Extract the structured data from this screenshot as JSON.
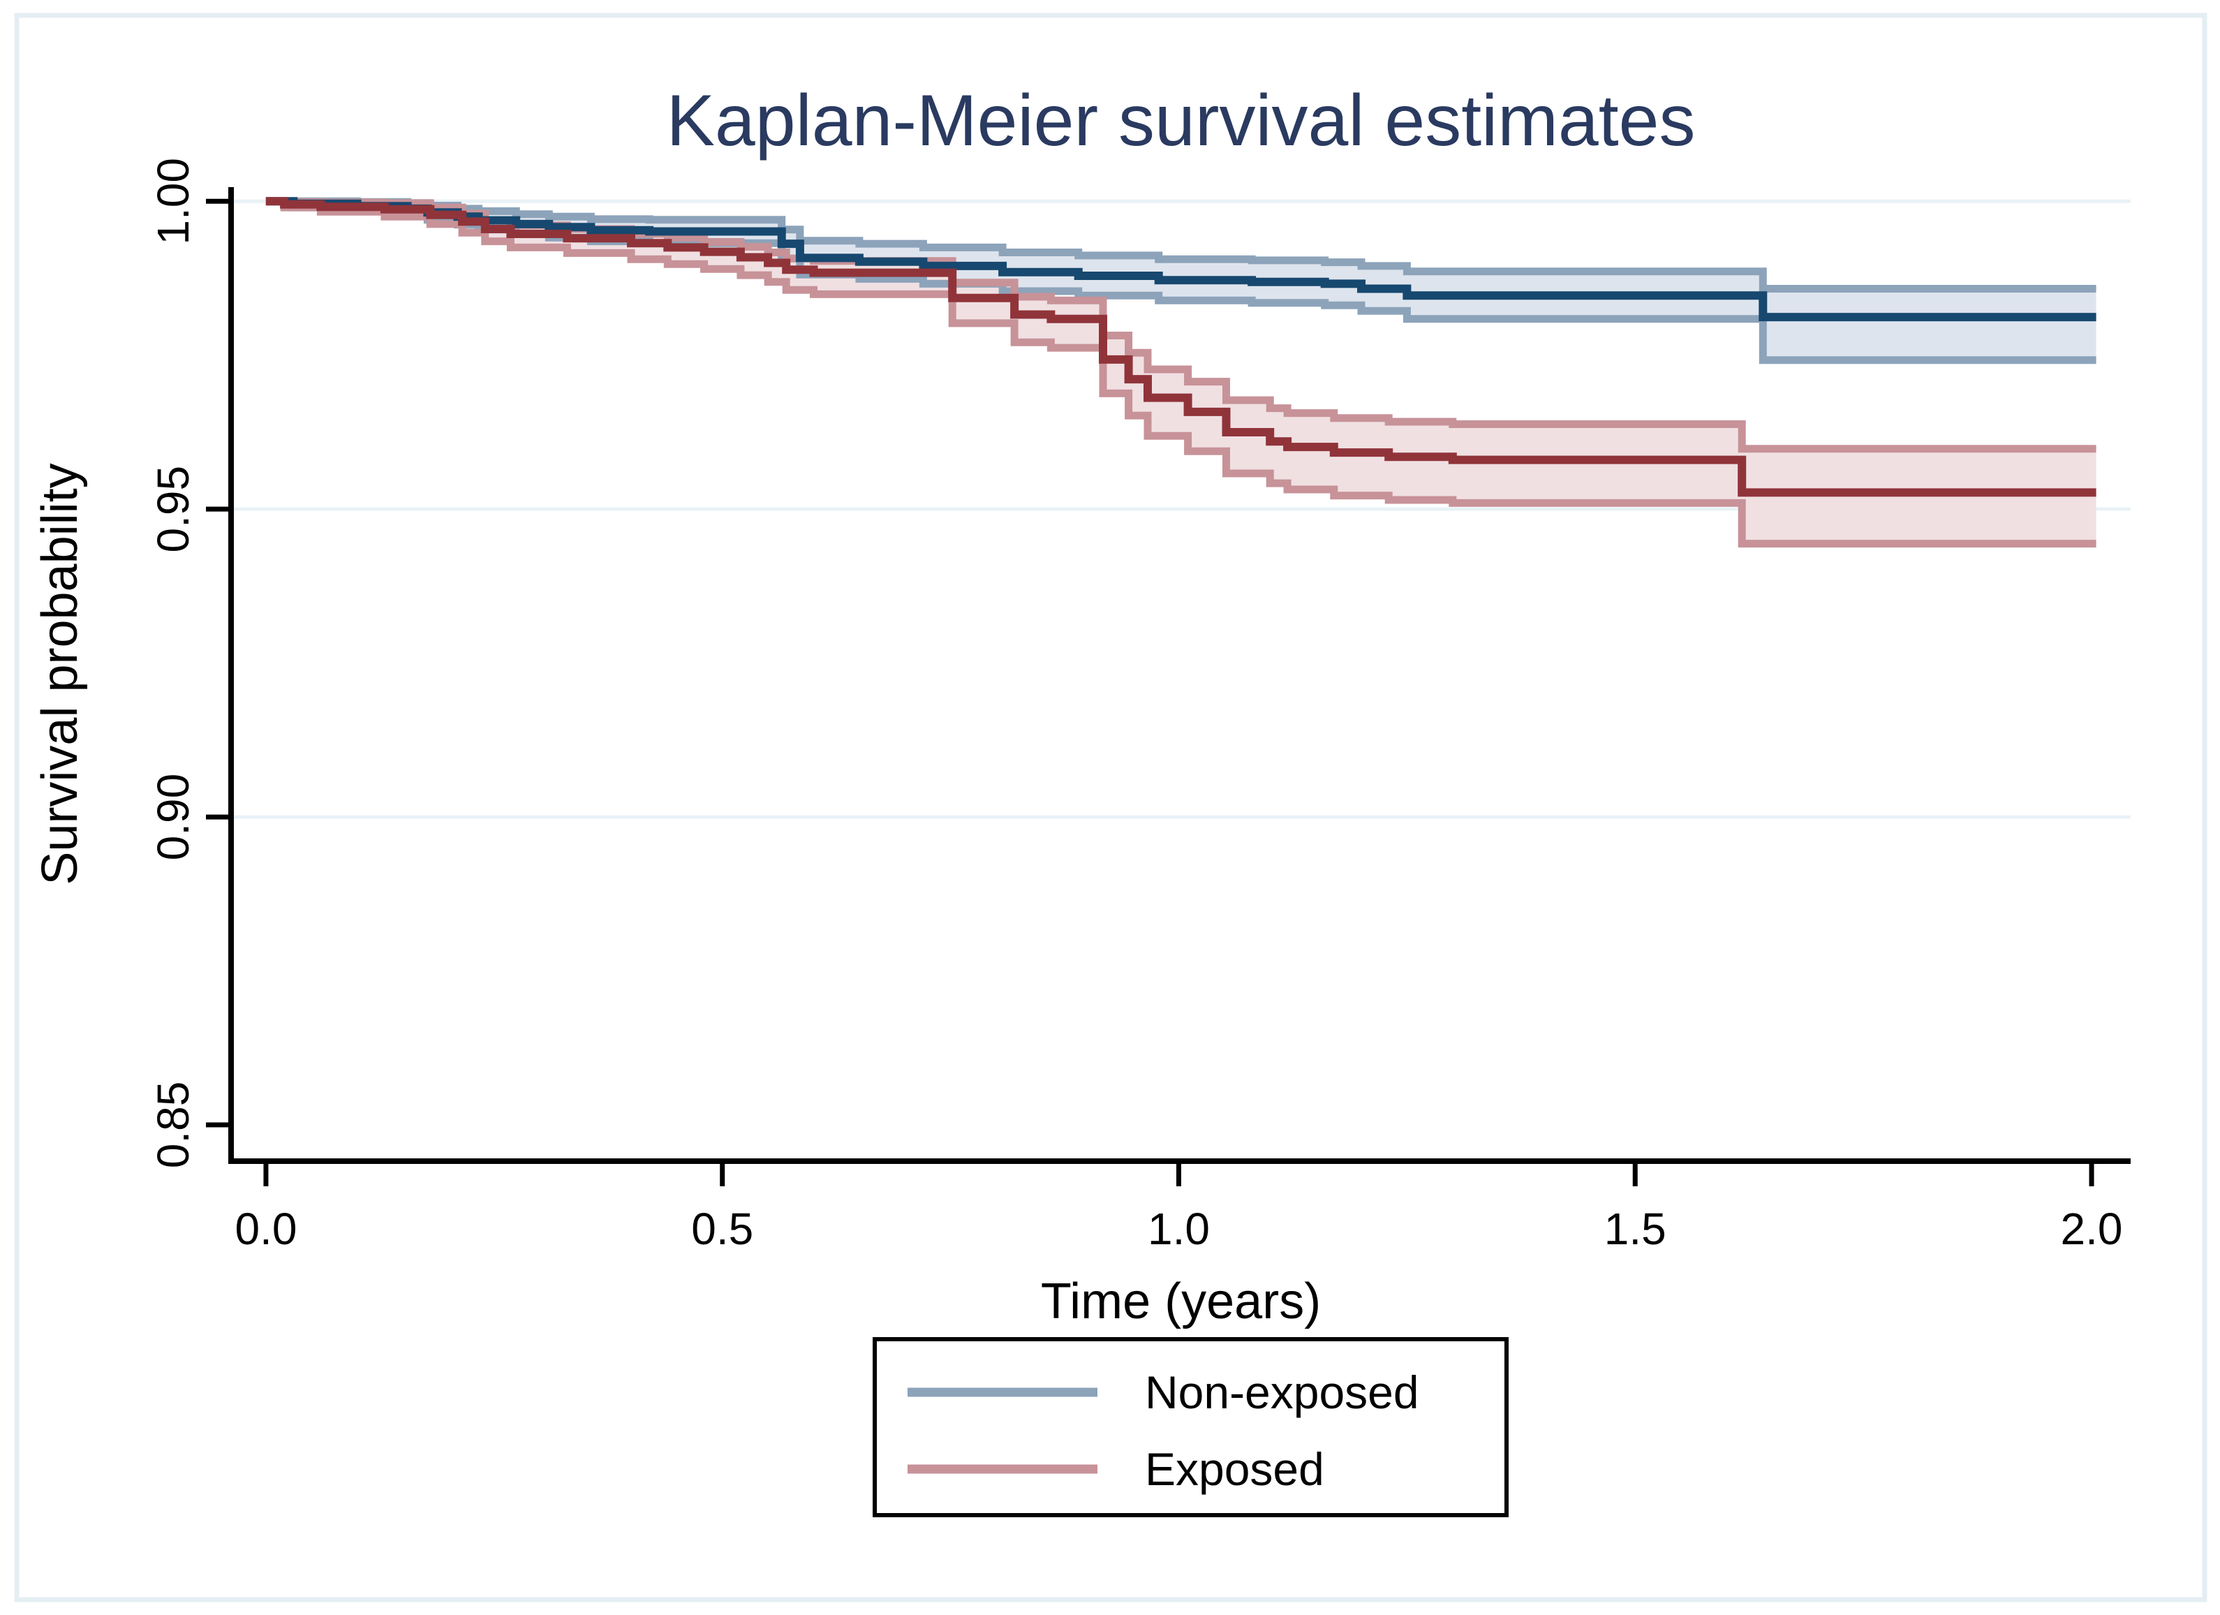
{
  "figure": {
    "background": "#ffffff",
    "outer_border_color": "#e4eef3"
  },
  "chart_data": {
    "type": "line",
    "subtype": "kaplan-meier-step-with-ci",
    "title": "Kaplan-Meier survival estimates",
    "title_color": "#2a3a60",
    "xlabel": "Time (years)",
    "ylabel": "Survival probability",
    "xlim": [
      -0.0382,
      2.0428
    ],
    "ylim": [
      0.8441,
      1.0023
    ],
    "grid_on": true,
    "grid_color": "#e9f2f6",
    "axis_color": "#000000",
    "text_color": "#000000",
    "xticks": [
      {
        "v": 0.0,
        "label": "0.0"
      },
      {
        "v": 0.5,
        "label": "0.5"
      },
      {
        "v": 1.0,
        "label": "1.0"
      },
      {
        "v": 1.5,
        "label": "1.5"
      },
      {
        "v": 2.0,
        "label": "2.0"
      }
    ],
    "yticks": [
      {
        "v": 1.0,
        "label": "1.00",
        "grid": true
      },
      {
        "v": 0.95,
        "label": "0.95",
        "grid": true
      },
      {
        "v": 0.9,
        "label": "0.90",
        "grid": true
      },
      {
        "v": 0.85,
        "label": "0.85",
        "grid": false
      }
    ],
    "legend": {
      "position": "below-center",
      "border_color": "#000000",
      "entries": [
        {
          "label": "Non-exposed",
          "swatch_color": "#8ca3ba"
        },
        {
          "label": "Exposed",
          "swatch_color": "#c79298"
        }
      ]
    },
    "series": [
      {
        "name": "Non-exposed",
        "line_color": "#17486f",
        "band_border_color": "#8ca3ba",
        "band_fill_color": "#dee4ed",
        "steps": [
          [
            0,
            1.0
          ],
          [
            0.03,
            0.9996
          ],
          [
            0.1,
            0.9992
          ],
          [
            0.155,
            0.9988
          ],
          [
            0.177,
            0.9982
          ],
          [
            0.21,
            0.9975
          ],
          [
            0.233,
            0.9969
          ],
          [
            0.274,
            0.9963
          ],
          [
            0.31,
            0.9958
          ],
          [
            0.356,
            0.9953
          ],
          [
            0.42,
            0.9951
          ],
          [
            0.565,
            0.9931
          ],
          [
            0.585,
            0.9908
          ],
          [
            0.65,
            0.9902
          ],
          [
            0.72,
            0.9895
          ],
          [
            0.807,
            0.9885
          ],
          [
            0.89,
            0.9879
          ],
          [
            0.978,
            0.9872
          ],
          [
            1.08,
            0.9869
          ],
          [
            1.16,
            0.9866
          ],
          [
            1.2,
            0.9858
          ],
          [
            1.25,
            0.9847
          ],
          [
            1.64,
            0.9812
          ],
          [
            2.005,
            0.9812
          ]
        ],
        "ci_upper": [
          [
            0,
            1.0
          ],
          [
            0.03,
            1.0
          ],
          [
            0.1,
            0.9999
          ],
          [
            0.155,
            0.9997
          ],
          [
            0.177,
            0.9993
          ],
          [
            0.21,
            0.9988
          ],
          [
            0.233,
            0.9984
          ],
          [
            0.274,
            0.9979
          ],
          [
            0.31,
            0.9975
          ],
          [
            0.356,
            0.9971
          ],
          [
            0.42,
            0.997
          ],
          [
            0.565,
            0.9954
          ],
          [
            0.585,
            0.9936
          ],
          [
            0.65,
            0.9931
          ],
          [
            0.72,
            0.9925
          ],
          [
            0.807,
            0.9917
          ],
          [
            0.89,
            0.9912
          ],
          [
            0.978,
            0.9906
          ],
          [
            1.08,
            0.9904
          ],
          [
            1.16,
            0.9901
          ],
          [
            1.2,
            0.9895
          ],
          [
            1.25,
            0.9886
          ],
          [
            1.64,
            0.9858
          ],
          [
            2.005,
            0.9858
          ]
        ],
        "ci_lower": [
          [
            0,
            1.0
          ],
          [
            0.03,
            0.999
          ],
          [
            0.1,
            0.9984
          ],
          [
            0.155,
            0.9978
          ],
          [
            0.177,
            0.997
          ],
          [
            0.21,
            0.9962
          ],
          [
            0.233,
            0.9954
          ],
          [
            0.274,
            0.9947
          ],
          [
            0.31,
            0.9941
          ],
          [
            0.356,
            0.9935
          ],
          [
            0.42,
            0.9932
          ],
          [
            0.565,
            0.9907
          ],
          [
            0.585,
            0.9881
          ],
          [
            0.65,
            0.9874
          ],
          [
            0.72,
            0.9866
          ],
          [
            0.807,
            0.9854
          ],
          [
            0.89,
            0.9847
          ],
          [
            0.978,
            0.9839
          ],
          [
            1.08,
            0.9835
          ],
          [
            1.16,
            0.9831
          ],
          [
            1.2,
            0.9822
          ],
          [
            1.25,
            0.9809
          ],
          [
            1.64,
            0.9742
          ],
          [
            2.005,
            0.9742
          ]
        ]
      },
      {
        "name": "Exposed",
        "line_color": "#90343a",
        "band_border_color": "#c79298",
        "band_fill_color": "#f0e0e2",
        "steps": [
          [
            0,
            1.0
          ],
          [
            0.02,
            0.9995
          ],
          [
            0.06,
            0.9991
          ],
          [
            0.13,
            0.9987
          ],
          [
            0.18,
            0.9978
          ],
          [
            0.215,
            0.9967
          ],
          [
            0.24,
            0.9955
          ],
          [
            0.268,
            0.9947
          ],
          [
            0.33,
            0.994
          ],
          [
            0.4,
            0.9932
          ],
          [
            0.44,
            0.9925
          ],
          [
            0.48,
            0.9918
          ],
          [
            0.52,
            0.9909
          ],
          [
            0.55,
            0.99
          ],
          [
            0.57,
            0.9889
          ],
          [
            0.6,
            0.9884
          ],
          [
            0.752,
            0.9843
          ],
          [
            0.82,
            0.9816
          ],
          [
            0.86,
            0.9809
          ],
          [
            0.917,
            0.9743
          ],
          [
            0.945,
            0.9711
          ],
          [
            0.966,
            0.9681
          ],
          [
            1.01,
            0.9658
          ],
          [
            1.052,
            0.9625
          ],
          [
            1.1,
            0.961
          ],
          [
            1.119,
            0.9601
          ],
          [
            1.17,
            0.9592
          ],
          [
            1.23,
            0.9585
          ],
          [
            1.3,
            0.958
          ],
          [
            1.617,
            0.9527
          ],
          [
            2.005,
            0.9527
          ]
        ],
        "ci_upper": [
          [
            0,
            1.0
          ],
          [
            0.02,
            0.9999
          ],
          [
            0.06,
            0.9998
          ],
          [
            0.13,
            0.9997
          ],
          [
            0.18,
            0.999
          ],
          [
            0.215,
            0.998
          ],
          [
            0.24,
            0.9969
          ],
          [
            0.268,
            0.9961
          ],
          [
            0.33,
            0.9955
          ],
          [
            0.4,
            0.9947
          ],
          [
            0.44,
            0.9941
          ],
          [
            0.48,
            0.9934
          ],
          [
            0.52,
            0.9926
          ],
          [
            0.55,
            0.9917
          ],
          [
            0.57,
            0.9907
          ],
          [
            0.6,
            0.9903
          ],
          [
            0.752,
            0.9868
          ],
          [
            0.82,
            0.9845
          ],
          [
            0.86,
            0.9839
          ],
          [
            0.917,
            0.9782
          ],
          [
            0.945,
            0.9754
          ],
          [
            0.966,
            0.9727
          ],
          [
            1.01,
            0.9707
          ],
          [
            1.052,
            0.9677
          ],
          [
            1.1,
            0.9664
          ],
          [
            1.119,
            0.9656
          ],
          [
            1.17,
            0.9648
          ],
          [
            1.23,
            0.9642
          ],
          [
            1.3,
            0.9638
          ],
          [
            1.617,
            0.9598
          ],
          [
            2.005,
            0.9598
          ]
        ],
        "ci_lower": [
          [
            0,
            1.0
          ],
          [
            0.02,
            0.999
          ],
          [
            0.06,
            0.9983
          ],
          [
            0.13,
            0.9975
          ],
          [
            0.18,
            0.9963
          ],
          [
            0.215,
            0.9949
          ],
          [
            0.24,
            0.9935
          ],
          [
            0.268,
            0.9925
          ],
          [
            0.33,
            0.9916
          ],
          [
            0.4,
            0.9906
          ],
          [
            0.44,
            0.9898
          ],
          [
            0.48,
            0.989
          ],
          [
            0.52,
            0.988
          ],
          [
            0.55,
            0.9869
          ],
          [
            0.57,
            0.9856
          ],
          [
            0.6,
            0.9849
          ],
          [
            0.752,
            0.9802
          ],
          [
            0.82,
            0.9771
          ],
          [
            0.86,
            0.9762
          ],
          [
            0.917,
            0.9688
          ],
          [
            0.945,
            0.9652
          ],
          [
            0.966,
            0.9619
          ],
          [
            1.01,
            0.9594
          ],
          [
            1.052,
            0.9558
          ],
          [
            1.1,
            0.9542
          ],
          [
            1.119,
            0.9532
          ],
          [
            1.17,
            0.9522
          ],
          [
            1.23,
            0.9515
          ],
          [
            1.3,
            0.951
          ],
          [
            1.617,
            0.9444
          ],
          [
            2.005,
            0.9444
          ]
        ]
      }
    ]
  }
}
